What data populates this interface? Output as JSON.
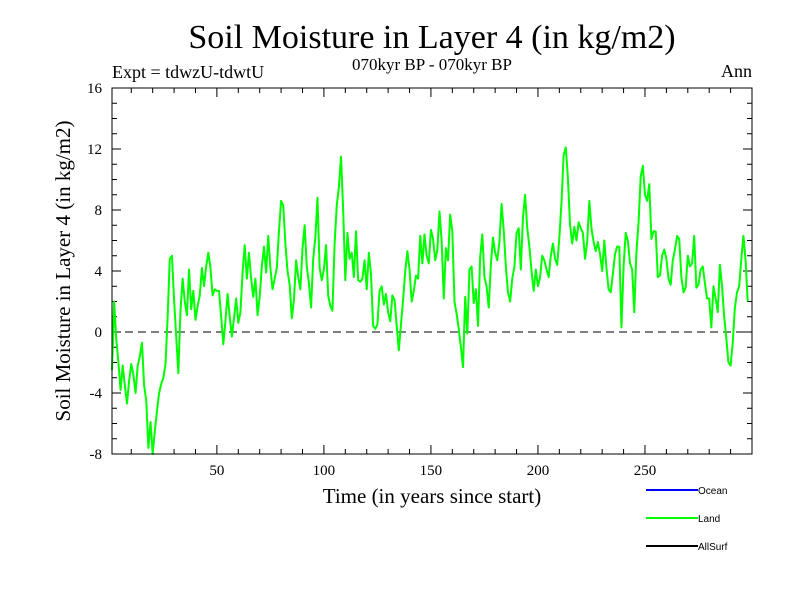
{
  "chart_data": {
    "type": "line",
    "title": "Soil Moisture in Layer 4 (in kg/m2)",
    "subtitle": "070kyr BP - 070kyr BP",
    "expt_label": "Expt = tdwzU-tdwtU",
    "period_label": "Ann",
    "xlabel": "Time (in years since start)",
    "ylabel": "Soil Moisture in Layer 4 (in kg/m2)",
    "xlim": [
      1,
      300
    ],
    "ylim": [
      -8,
      16
    ],
    "x_ticks": [
      50,
      100,
      150,
      200,
      250
    ],
    "y_ticks": [
      -8,
      -4,
      0,
      4,
      8,
      12,
      16
    ],
    "zero_line": true,
    "series": [
      {
        "name": "Land",
        "color": "#00ff00",
        "x_start": 1,
        "x_step": 1,
        "values": [
          -2.5,
          2.0,
          -0.5,
          -2.0,
          -3.8,
          -2.2,
          -3.5,
          -4.7,
          -3.2,
          -2.1,
          -2.8,
          -4.0,
          -2.2,
          -1.6,
          -0.7,
          -3.5,
          -4.5,
          -7.6,
          -5.9,
          -8.0,
          -6.5,
          -5.2,
          -4.0,
          -3.4,
          -3.0,
          -2.1,
          1.0,
          4.8,
          5.0,
          2.1,
          -0.3,
          -2.7,
          1.4,
          3.5,
          2.0,
          1.1,
          4.1,
          1.5,
          2.7,
          0.8,
          1.7,
          2.4,
          4.2,
          3.0,
          4.3,
          5.2,
          4.2,
          2.4,
          2.8,
          2.7,
          2.7,
          1.0,
          -0.8,
          0.7,
          2.5,
          1.0,
          -0.3,
          0.9,
          2.2,
          0.6,
          1.3,
          3.9,
          5.7,
          3.5,
          5.2,
          3.5,
          2.3,
          3.5,
          1.1,
          2.3,
          4.3,
          5.6,
          3.9,
          6.3,
          4.2,
          2.8,
          3.5,
          4.2,
          6.6,
          8.6,
          8.3,
          5.8,
          4.0,
          3.1,
          0.9,
          2.1,
          4.7,
          3.6,
          2.8,
          5.5,
          7.0,
          4.3,
          3.2,
          1.6,
          4.8,
          6.2,
          8.8,
          4.2,
          3.4,
          4.1,
          5.7,
          2.4,
          1.7,
          1.4,
          5.8,
          8.3,
          9.5,
          11.5,
          8.0,
          3.4,
          6.5,
          4.8,
          5.2,
          3.6,
          6.6,
          3.4,
          3.3,
          3.5,
          4.7,
          2.8,
          5.2,
          3.8,
          0.4,
          0.2,
          0.5,
          2.7,
          3.0,
          1.8,
          2.5,
          1.3,
          0.7,
          2.4,
          2.1,
          0.4,
          -1.2,
          0.5,
          2.1,
          4.0,
          5.3,
          4.1,
          2.0,
          2.7,
          3.7,
          3.5,
          6.3,
          4.5,
          6.4,
          5.0,
          4.5,
          6.7,
          6.1,
          4.7,
          5.4,
          7.9,
          6.0,
          2.2,
          5.5,
          4.7,
          7.7,
          6.6,
          2.0,
          1.2,
          0.2,
          -1.0,
          -2.3,
          2.3,
          -0.1,
          4.1,
          4.3,
          1.9,
          2.8,
          0.4,
          4.9,
          6.4,
          3.6,
          3.0,
          1.6,
          4.4,
          6.2,
          5.2,
          4.7,
          5.9,
          8.4,
          6.7,
          4.3,
          2.6,
          2.0,
          3.5,
          4.3,
          6.5,
          6.8,
          4.1,
          7.5,
          9.0,
          6.8,
          5.6,
          4.0,
          2.7,
          4.1,
          3.0,
          3.6,
          5.0,
          4.7,
          4.1,
          3.6,
          5.0,
          5.8,
          4.8,
          4.4,
          6.2,
          8.5,
          11.6,
          12.1,
          10.1,
          7.0,
          5.8,
          6.9,
          6.0,
          7.2,
          6.8,
          6.5,
          4.8,
          5.9,
          8.6,
          6.8,
          5.9,
          5.3,
          5.9,
          5.1,
          4.0,
          6.0,
          4.2,
          2.8,
          2.6,
          3.8,
          5.1,
          5.6,
          5.6,
          0.3,
          4.3,
          6.5,
          6.0,
          4.5,
          4.1,
          1.3,
          5.2,
          7.2,
          10.2,
          10.9,
          9.0,
          8.6,
          9.7,
          6.1,
          6.6,
          6.6,
          3.6,
          3.7,
          5.0,
          5.4,
          4.8,
          3.5,
          3.1,
          4.7,
          5.4,
          6.3,
          6.1,
          3.6,
          2.6,
          2.9,
          5.0,
          4.3,
          4.5,
          6.3,
          2.9,
          3.1,
          4.1,
          4.3,
          3.2,
          2.2,
          2.2,
          0.3,
          3.0,
          2.2,
          1.3,
          4.4,
          3.0,
          1.0,
          -0.4,
          -2.0,
          -2.2,
          -0.7,
          1.6,
          2.6,
          3.0,
          4.8,
          6.3,
          4.7,
          2.0
        ]
      }
    ],
    "legend": {
      "placement": "bottom-right",
      "entries": [
        {
          "label": "Ocean",
          "color": "#0000ff"
        },
        {
          "label": "Land",
          "color": "#00ff00"
        },
        {
          "label": "AllSurf",
          "color": "#000000"
        }
      ]
    }
  }
}
